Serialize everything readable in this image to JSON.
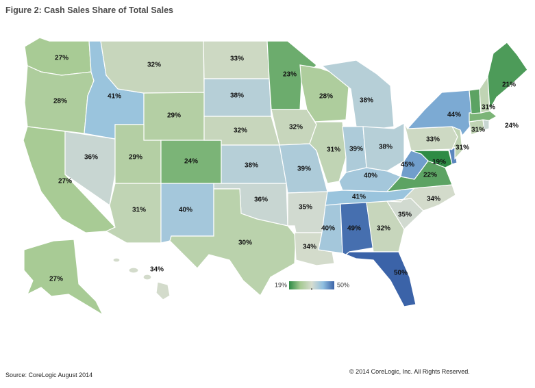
{
  "title": "Figure 2: Cash Sales Share of Total Sales",
  "source": "Source: CoreLogic August 2014",
  "copyright": "© 2014 CoreLogic, Inc. All Rights Reserved.",
  "legend": {
    "min_label": "19%",
    "max_label": "50%",
    "min": 19,
    "max": 50,
    "colors": [
      "#2e8b45",
      "#a6ca93",
      "#d6dccf",
      "#8fbfe0",
      "#3b63a8"
    ]
  },
  "states": [
    {
      "id": "WA",
      "label": "27%",
      "value": 27
    },
    {
      "id": "OR",
      "label": "28%",
      "value": 28
    },
    {
      "id": "CA",
      "label": "27%",
      "value": 27
    },
    {
      "id": "NV",
      "label": "36%",
      "value": 36
    },
    {
      "id": "ID",
      "label": "41%",
      "value": 41
    },
    {
      "id": "MT",
      "label": "32%",
      "value": 32
    },
    {
      "id": "WY",
      "label": "29%",
      "value": 29
    },
    {
      "id": "UT",
      "label": "29%",
      "value": 29
    },
    {
      "id": "AZ",
      "label": "31%",
      "value": 31
    },
    {
      "id": "CO",
      "label": "24%",
      "value": 24
    },
    {
      "id": "NM",
      "label": "40%",
      "value": 40
    },
    {
      "id": "ND",
      "label": "33%",
      "value": 33
    },
    {
      "id": "SD",
      "label": "38%",
      "value": 38
    },
    {
      "id": "NE",
      "label": "32%",
      "value": 32
    },
    {
      "id": "KS",
      "label": "38%",
      "value": 38
    },
    {
      "id": "OK",
      "label": "36%",
      "value": 36
    },
    {
      "id": "TX",
      "label": "30%",
      "value": 30
    },
    {
      "id": "MN",
      "label": "23%",
      "value": 23
    },
    {
      "id": "IA",
      "label": "32%",
      "value": 32
    },
    {
      "id": "MO",
      "label": "39%",
      "value": 39
    },
    {
      "id": "AR",
      "label": "35%",
      "value": 35
    },
    {
      "id": "LA",
      "label": "34%",
      "value": 34
    },
    {
      "id": "WI",
      "label": "28%",
      "value": 28
    },
    {
      "id": "IL",
      "label": "31%",
      "value": 31
    },
    {
      "id": "MI",
      "label": "38%",
      "value": 38
    },
    {
      "id": "IN",
      "label": "39%",
      "value": 39
    },
    {
      "id": "OH",
      "label": "38%",
      "value": 38
    },
    {
      "id": "KY",
      "label": "40%",
      "value": 40
    },
    {
      "id": "TN",
      "label": "41%",
      "value": 41
    },
    {
      "id": "MS",
      "label": "40%",
      "value": 40
    },
    {
      "id": "AL",
      "label": "49%",
      "value": 49
    },
    {
      "id": "GA",
      "label": "32%",
      "value": 32
    },
    {
      "id": "FL",
      "label": "50%",
      "value": 50
    },
    {
      "id": "SC",
      "label": "35%",
      "value": 35
    },
    {
      "id": "NC",
      "label": "34%",
      "value": 34
    },
    {
      "id": "VA",
      "label": "22%",
      "value": 22
    },
    {
      "id": "WV",
      "label": "45%",
      "value": 45
    },
    {
      "id": "MD",
      "label": "19%",
      "value": 19
    },
    {
      "id": "DE",
      "label": "",
      "value": 47
    },
    {
      "id": "PA",
      "label": "33%",
      "value": 33
    },
    {
      "id": "NJ",
      "label": "31%",
      "value": 31
    },
    {
      "id": "NY",
      "label": "44%",
      "value": 44
    },
    {
      "id": "CT",
      "label": "31%",
      "value": 31
    },
    {
      "id": "RI",
      "label": "",
      "value": 36
    },
    {
      "id": "MA",
      "label": "24%",
      "value": 24
    },
    {
      "id": "VT",
      "label": "",
      "value": 22
    },
    {
      "id": "NH",
      "label": "31%",
      "value": 31
    },
    {
      "id": "ME",
      "label": "21%",
      "value": 21
    },
    {
      "id": "AK",
      "label": "27%",
      "value": 27
    },
    {
      "id": "HI",
      "label": "34%",
      "value": 34
    }
  ]
}
